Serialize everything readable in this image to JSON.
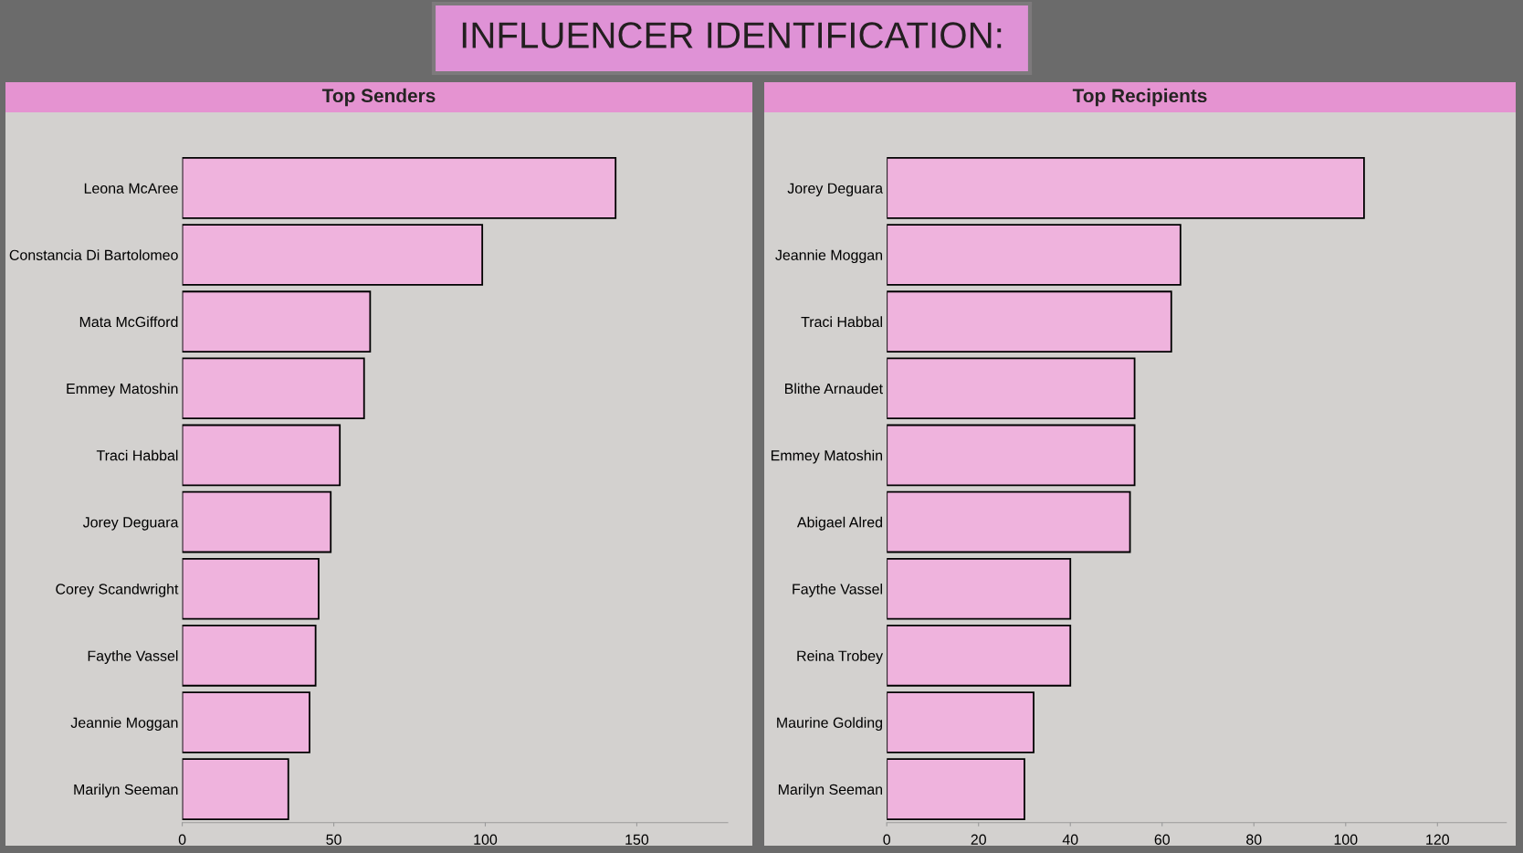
{
  "chart_data": [
    {
      "type": "other",
      "title": "INFLUENCER IDENTIFICATION:"
    },
    {
      "type": "bar",
      "orientation": "horizontal",
      "title": "Top Senders",
      "categories": [
        "Leona McAree",
        "Constancia Di Bartolomeo",
        "Mata McGifford",
        "Emmey Matoshin",
        "Traci Habbal",
        "Jorey Deguara",
        "Corey Scandwright",
        "Faythe Vassel",
        "Jeannie Moggan",
        "Marilyn Seeman"
      ],
      "values": [
        143,
        99,
        62,
        60,
        52,
        49,
        45,
        44,
        42,
        35
      ],
      "color": "#efb3dd",
      "xlim": [
        0,
        180
      ],
      "xticks": [
        0,
        50,
        100,
        150
      ]
    },
    {
      "type": "bar",
      "orientation": "horizontal",
      "title": "Top Recipients",
      "categories": [
        "Jorey Deguara",
        "Jeannie Moggan",
        "Traci Habbal",
        "Blithe Arnaudet",
        "Emmey Matoshin",
        "Abigael Alred",
        "Faythe Vassel",
        "Reina Trobey",
        "Maurine Golding",
        "Marilyn Seeman"
      ],
      "values": [
        104,
        64,
        62,
        54,
        54,
        53,
        40,
        40,
        32,
        30
      ],
      "color": "#efb3dd",
      "xlim": [
        0,
        135
      ],
      "xticks": [
        0,
        20,
        40,
        60,
        80,
        100,
        120
      ]
    }
  ]
}
